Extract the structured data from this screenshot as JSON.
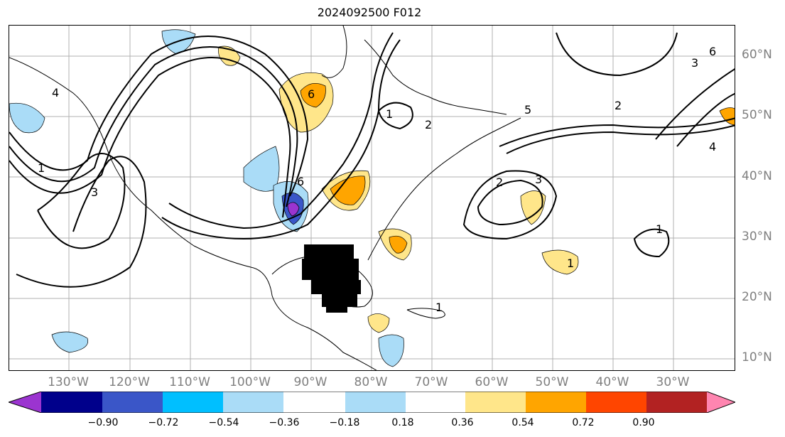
{
  "title": "2024092500 F012",
  "lat_labels": [
    "60°N",
    "50°N",
    "40°N",
    "30°N",
    "20°N",
    "10°N"
  ],
  "lon_labels": [
    "130°W",
    "120°W",
    "110°W",
    "100°W",
    "90°W",
    "80°W",
    "70°W",
    "60°W",
    "50°W",
    "40°W",
    "30°W"
  ],
  "colorbar": {
    "ticks": [
      "−0.90",
      "−0.72",
      "−0.54",
      "−0.36",
      "−0.18",
      "0.18",
      "0.36",
      "0.54",
      "0.72",
      "0.90"
    ],
    "colors": [
      "#9b34d0",
      "#00008b",
      "#3a56c8",
      "#00bfff",
      "#aadcf7",
      "#ffffff",
      "#ffe68a",
      "#ffa500",
      "#ff4500",
      "#b22222",
      "#ff85b0"
    ]
  },
  "contour_labels": [
    "1",
    "1",
    "1",
    "1",
    "1",
    "2",
    "2",
    "2",
    "3",
    "3",
    "3",
    "4",
    "4",
    "5",
    "6",
    "6",
    "6"
  ],
  "colors": {
    "land_outline": "#000000",
    "grid": "#b0b0b0",
    "contour": "#000000",
    "hatch": "#000000"
  }
}
